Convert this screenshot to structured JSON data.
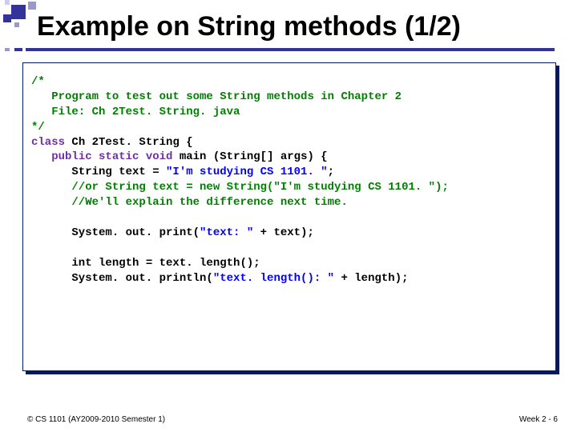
{
  "slide": {
    "title": "Example on String methods (1/2)",
    "footer_left": "© CS 1101 (AY2009-2010 Semester 1)",
    "footer_right": "Week 2 - 6"
  },
  "deco": {
    "accent_color": "#333399",
    "light_color": "#9999cc",
    "pale_color": "#ccccee",
    "shadow_color": "#001a66"
  },
  "code": {
    "c1": "/*",
    "c2": "   Program to test out some String methods in Chapter 2",
    "c3": "   File: Ch 2Test. String. java",
    "c4": "*/",
    "kw_class": "class",
    "class_name": " Ch 2Test. String {",
    "kw_psvm": "public static void",
    "main_sig": " main (String[] args) {",
    "l_decl1": "      String text = ",
    "s_decl1": "\"I'm studying CS 1101. \"",
    "l_decl1_end": ";",
    "com_or": "      //or String text = new String(\"I'm studying CS 1101. \");",
    "com_next": "      //We'll explain the difference next time.",
    "l_print1a": "      System. out. print(",
    "s_print1": "\"text: \"",
    "l_print1b": " + text);",
    "l_len": "      int length = text. length();",
    "l_print2a": "      System. out. println(",
    "s_print2": "\"text. length(): \"",
    "l_print2b": " + length);"
  }
}
